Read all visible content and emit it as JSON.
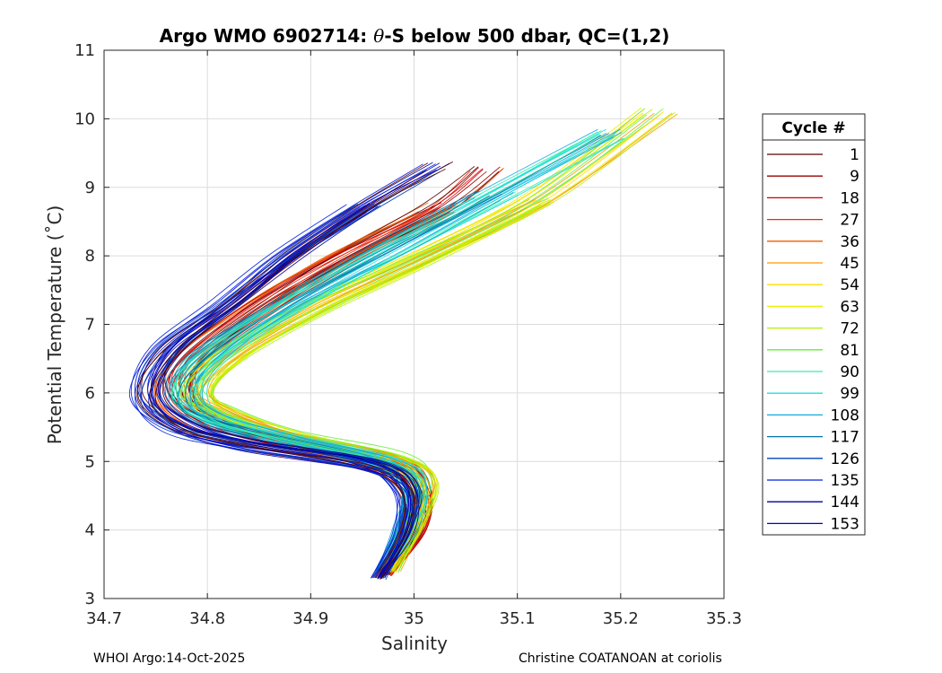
{
  "chart_data": {
    "type": "line",
    "title": "Argo WMO 6902714: θ-S below 500 dbar,  QC=(1,2)",
    "title_parts": [
      "Argo WMO 6902714: ",
      "θ",
      "-S below 500 dbar,  QC=(1,2)"
    ],
    "xlabel": "Salinity",
    "ylabel": "Potential Temperature (˚C)",
    "xlim": [
      34.7,
      35.3
    ],
    "ylim": [
      3,
      11
    ],
    "xticks": [
      "34.7",
      "34.8",
      "34.9",
      "35",
      "35.1",
      "35.2",
      "35.3"
    ],
    "yticks": [
      "3",
      "4",
      "5",
      "6",
      "7",
      "8",
      "9",
      "10",
      "11"
    ],
    "grid": true,
    "legend_title": "Cycle #",
    "legend_placement": "right",
    "series": [
      {
        "name": "1",
        "color": "#5a0000"
      },
      {
        "name": "9",
        "color": "#990000"
      },
      {
        "name": "18",
        "color": "#d40000"
      },
      {
        "name": "27",
        "color": "#e62e00"
      },
      {
        "name": "36",
        "color": "#f25c00"
      },
      {
        "name": "45",
        "color": "#ff9900"
      },
      {
        "name": "54",
        "color": "#ffdd00"
      },
      {
        "name": "63",
        "color": "#e6f000"
      },
      {
        "name": "72",
        "color": "#b3f000"
      },
      {
        "name": "81",
        "color": "#66ee33"
      },
      {
        "name": "90",
        "color": "#33eeaa"
      },
      {
        "name": "99",
        "color": "#22dddd"
      },
      {
        "name": "108",
        "color": "#11aadd"
      },
      {
        "name": "117",
        "color": "#0077aa"
      },
      {
        "name": "126",
        "color": "#0044bb"
      },
      {
        "name": "135",
        "color": "#0022dd"
      },
      {
        "name": "144",
        "color": "#000099"
      },
      {
        "name": "153",
        "color": "#0000cc"
      }
    ],
    "profile_families": [
      {
        "colors": [
          "#5a0000",
          "#990000",
          "#d40000",
          "#e62e00",
          "#f25c00"
        ],
        "points": [
          [
            34.97,
            3.35
          ],
          [
            35.0,
            4.0
          ],
          [
            35.0,
            4.6
          ],
          [
            34.97,
            5.0
          ],
          [
            34.86,
            5.35
          ],
          [
            34.8,
            5.6
          ],
          [
            34.77,
            6.0
          ],
          [
            34.78,
            6.5
          ],
          [
            34.85,
            7.3
          ],
          [
            34.93,
            8.0
          ],
          [
            35.02,
            8.7
          ],
          [
            35.07,
            9.3
          ]
        ]
      },
      {
        "colors": [
          "#ff9900",
          "#ffdd00",
          "#e6f000",
          "#b3f000",
          "#66ee33"
        ],
        "points": [
          [
            34.98,
            3.4
          ],
          [
            35.0,
            4.1
          ],
          [
            35.01,
            4.7
          ],
          [
            34.98,
            5.05
          ],
          [
            34.88,
            5.4
          ],
          [
            34.82,
            5.7
          ],
          [
            34.79,
            6.0
          ],
          [
            34.82,
            6.5
          ],
          [
            34.9,
            7.2
          ],
          [
            35.0,
            7.9
          ],
          [
            35.12,
            8.8
          ],
          [
            35.24,
            10.1
          ]
        ]
      },
      {
        "colors": [
          "#33eeaa",
          "#22dddd",
          "#11aadd",
          "#0077aa"
        ],
        "points": [
          [
            34.97,
            3.4
          ],
          [
            34.99,
            4.0
          ],
          [
            35.0,
            4.6
          ],
          [
            34.97,
            5.0
          ],
          [
            34.87,
            5.35
          ],
          [
            34.8,
            5.65
          ],
          [
            34.78,
            6.0
          ],
          [
            34.8,
            6.5
          ],
          [
            34.88,
            7.3
          ],
          [
            34.98,
            8.1
          ],
          [
            35.08,
            8.9
          ],
          [
            35.19,
            9.8
          ]
        ]
      },
      {
        "colors": [
          "#0044bb",
          "#0022dd",
          "#000099",
          "#0000cc",
          "#5a0000"
        ],
        "points": [
          [
            34.965,
            3.3
          ],
          [
            34.99,
            4.0
          ],
          [
            34.99,
            4.6
          ],
          [
            34.95,
            4.95
          ],
          [
            34.83,
            5.25
          ],
          [
            34.77,
            5.5
          ],
          [
            34.74,
            5.95
          ],
          [
            34.76,
            6.6
          ],
          [
            34.82,
            7.3
          ],
          [
            34.88,
            8.0
          ],
          [
            34.95,
            8.7
          ],
          [
            35.02,
            9.3
          ]
        ]
      }
    ]
  },
  "footer": {
    "left": "WHOI Argo:14-Oct-2025",
    "right": "Christine COATANOAN at coriolis"
  }
}
